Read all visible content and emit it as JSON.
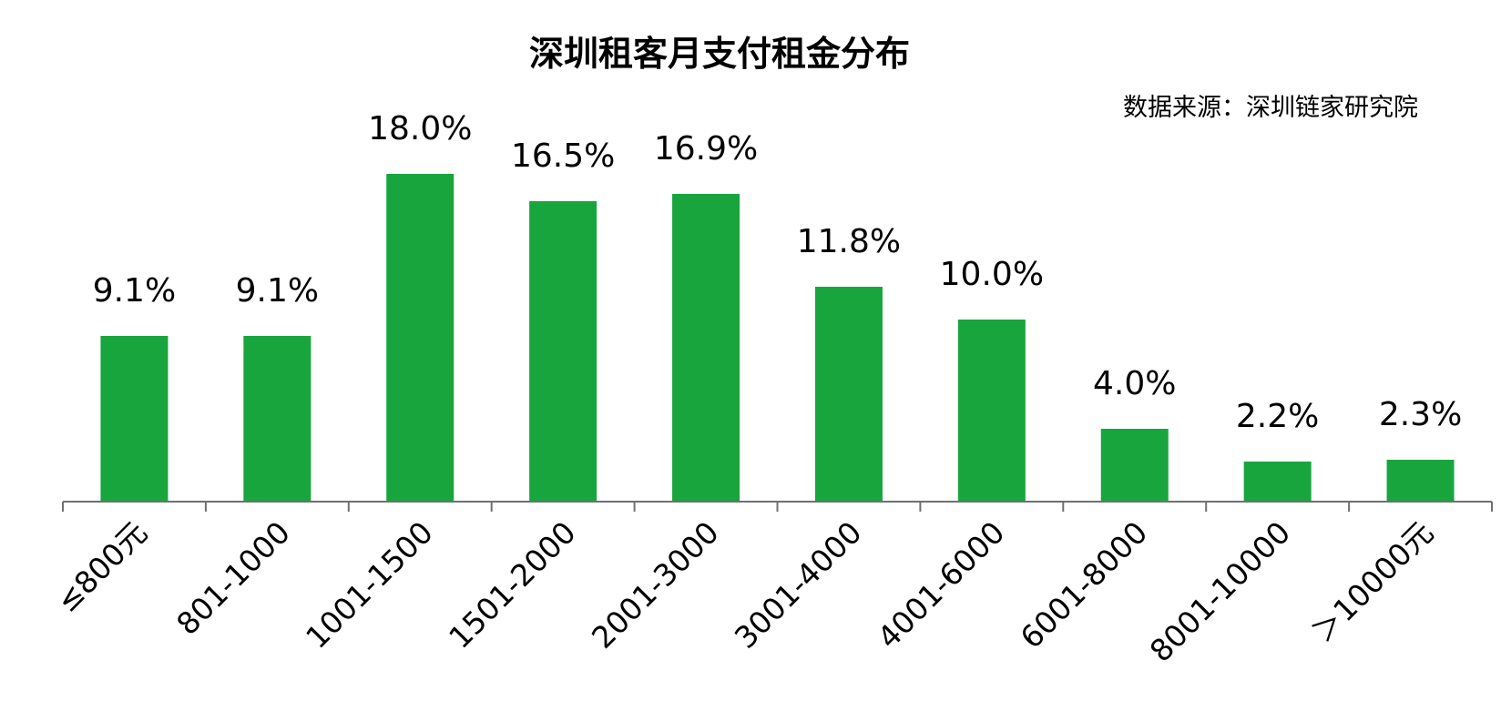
{
  "chart_data": {
    "type": "bar",
    "title": "深圳租客月支付租金分布",
    "source": "数据来源：深圳链家研究院",
    "categories": [
      "≤800元",
      "801-1000",
      "1001-1500",
      "1501-2000",
      "2001-3000",
      "3001-4000",
      "4001-6000",
      "6001-8000",
      "8001-10000",
      "＞10000元"
    ],
    "values": [
      9.1,
      9.1,
      18.0,
      16.5,
      16.9,
      11.8,
      10.0,
      4.0,
      2.2,
      2.3
    ],
    "value_labels": [
      "9.1%",
      "9.1%",
      "18.0%",
      "16.5%",
      "16.9%",
      "11.8%",
      "10.0%",
      "4.0%",
      "2.2%",
      "2.3%"
    ],
    "xlabel": "",
    "ylabel": "",
    "ylim": [
      0,
      20
    ],
    "grid": false,
    "bar_color": "#19A53E"
  }
}
